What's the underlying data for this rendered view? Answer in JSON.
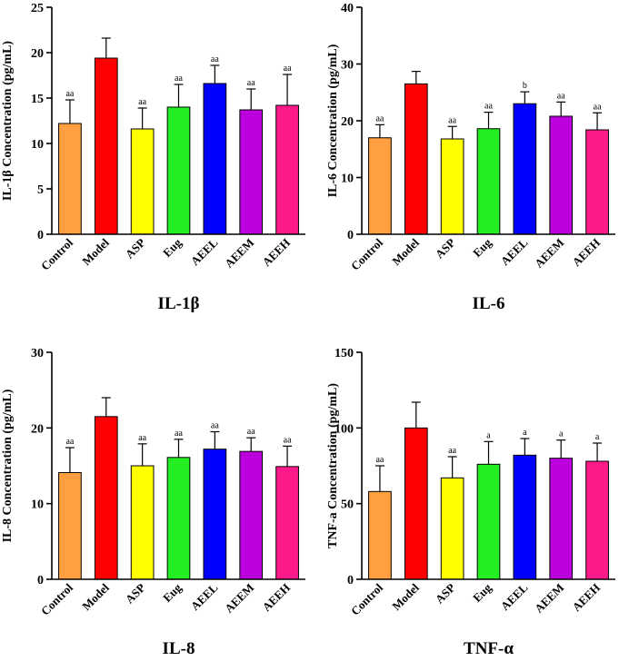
{
  "chart_data": [
    {
      "type": "bar",
      "title": "IL-1β",
      "ylabel": "IL-1β Concentration (pg/mL)",
      "ylim": [
        0,
        25
      ],
      "yticks": [
        0,
        5,
        10,
        15,
        20,
        25
      ],
      "categories": [
        "Control",
        "Model",
        "ASP",
        "Eug",
        "AEEL",
        "AEEM",
        "AEEH"
      ],
      "values": [
        12.2,
        19.4,
        11.6,
        14.0,
        16.6,
        13.7,
        14.2
      ],
      "errors": [
        2.6,
        2.2,
        2.3,
        2.5,
        2.0,
        2.3,
        3.4
      ],
      "labels": [
        "aa",
        "",
        "aa",
        "aa",
        "aa",
        "aa",
        "aa"
      ]
    },
    {
      "type": "bar",
      "title": "IL-6",
      "ylabel": "IL-6 Concentration (pg/mL)",
      "ylim": [
        0,
        40
      ],
      "yticks": [
        0,
        10,
        20,
        30,
        40
      ],
      "categories": [
        "Control",
        "Model",
        "ASP",
        "Eug",
        "AEEL",
        "AEEM",
        "AEEH"
      ],
      "values": [
        17.0,
        26.5,
        16.8,
        18.6,
        23.0,
        20.8,
        18.4
      ],
      "errors": [
        2.3,
        2.2,
        2.2,
        2.9,
        2.1,
        2.5,
        3.0
      ],
      "labels": [
        "aa",
        "",
        "aa",
        "aa",
        "b",
        "aa",
        "aa"
      ]
    },
    {
      "type": "bar",
      "title": "IL-8",
      "ylabel": "IL-8 Concentration (pg/mL)",
      "ylim": [
        0,
        30
      ],
      "yticks": [
        0,
        10,
        20,
        30
      ],
      "categories": [
        "Control",
        "Model",
        "ASP",
        "Eug",
        "AEEL",
        "AEEM",
        "AEEH"
      ],
      "values": [
        14.1,
        21.5,
        15.0,
        16.1,
        17.2,
        16.9,
        14.9
      ],
      "errors": [
        3.3,
        2.5,
        2.9,
        2.4,
        2.3,
        1.8,
        2.7
      ],
      "labels": [
        "aa",
        "",
        "aa",
        "aa",
        "aa",
        "aa",
        "aa"
      ]
    },
    {
      "type": "bar",
      "title": "TNF-α",
      "ylabel": "TNF-a Concentration (pg/mL)",
      "ylim": [
        0,
        150
      ],
      "yticks": [
        0,
        50,
        100,
        150
      ],
      "categories": [
        "Control",
        "Model",
        "ASP",
        "Eug",
        "AEEL",
        "AEEM",
        "AEEH"
      ],
      "values": [
        58,
        100,
        67,
        76,
        82,
        80,
        78
      ],
      "errors": [
        17,
        17,
        14,
        15,
        11,
        12,
        12
      ],
      "labels": [
        "aa",
        "",
        "aa",
        "a",
        "a",
        "a",
        "a"
      ]
    }
  ],
  "colors": [
    "#ff9f40",
    "#ff0000",
    "#ffff00",
    "#22ee22",
    "#0000ff",
    "#bb00dd",
    "#ff1a8c"
  ]
}
